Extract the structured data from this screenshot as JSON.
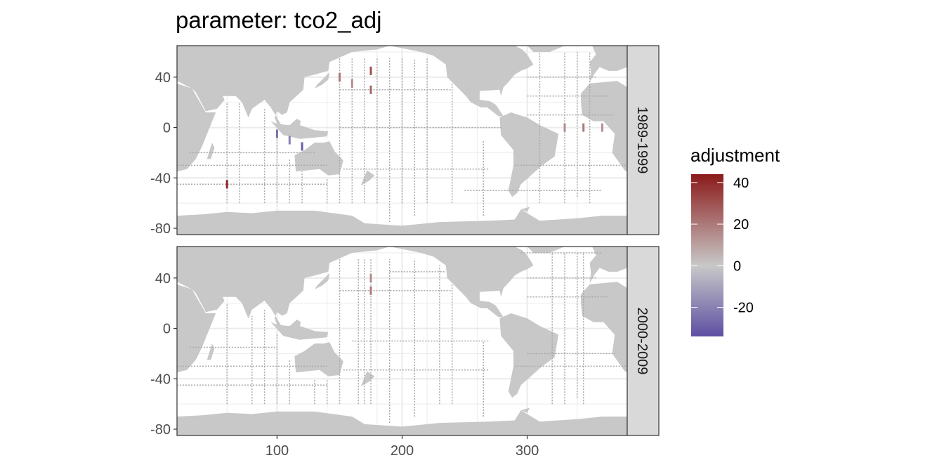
{
  "chart_data": {
    "type": "heatmap",
    "title": "parameter: tco2_adj",
    "xlabel": "",
    "ylabel": "",
    "xlim": [
      20,
      380
    ],
    "ylim": [
      -85,
      65
    ],
    "x_ticks": [
      100,
      200,
      300
    ],
    "y_ticks": [
      40,
      0,
      -40,
      -80
    ],
    "panels": [
      {
        "label": "1989-1999",
        "cells": [
          {
            "lon": 60,
            "lat": -45,
            "value": 40
          },
          {
            "lon": 150,
            "lat": 40,
            "value": 20
          },
          {
            "lon": 160,
            "lat": 35,
            "value": 15
          },
          {
            "lon": 175,
            "lat": 30,
            "value": 25
          },
          {
            "lon": 175,
            "lat": 45,
            "value": 30
          },
          {
            "lon": 330,
            "lat": 0,
            "value": 15
          },
          {
            "lon": 345,
            "lat": 0,
            "value": 20
          },
          {
            "lon": 360,
            "lat": 0,
            "value": 15
          },
          {
            "lon": 100,
            "lat": -5,
            "value": -25
          },
          {
            "lon": 110,
            "lat": -10,
            "value": -20
          },
          {
            "lon": 120,
            "lat": -15,
            "value": -30
          }
        ]
      },
      {
        "label": "2000-2009",
        "cells": [
          {
            "lon": 175,
            "lat": 30,
            "value": 20
          },
          {
            "lon": 175,
            "lat": 40,
            "value": 15
          }
        ]
      }
    ],
    "legend": {
      "title": "adjustment",
      "ticks": [
        40,
        20,
        0,
        -20
      ],
      "range": [
        -34,
        44
      ],
      "colors": {
        "low": "#5e4fa2",
        "mid": "#c8c8c8",
        "high": "#8b1a1a"
      },
      "placement": "right"
    },
    "colors": {
      "land": "#c8c8c8",
      "ocean": "#ffffff",
      "track": "#a8a8a8",
      "grid": "#ebebeb",
      "strip": "#d9d9d9"
    }
  }
}
